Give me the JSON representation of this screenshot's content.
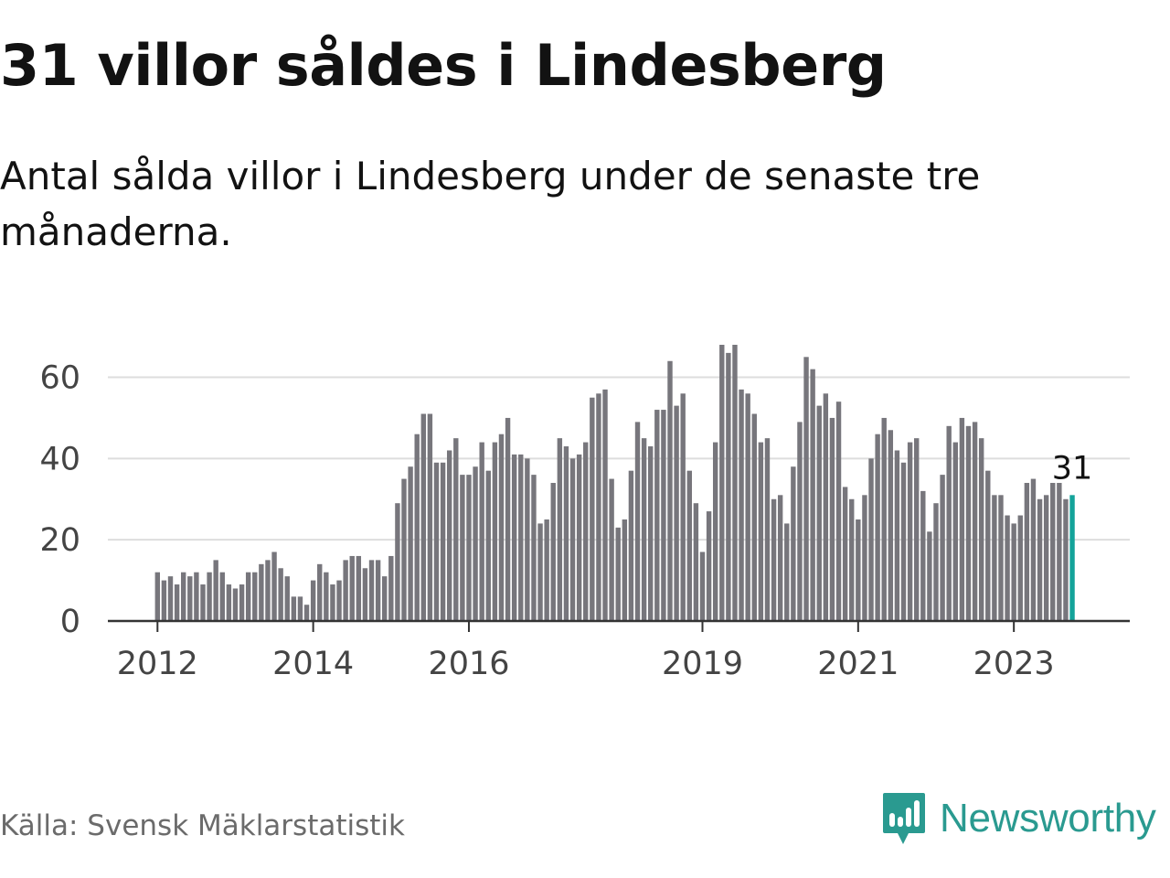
{
  "title": "31 villor såldes i Lindesberg",
  "subtitle": "Antal sålda villor i Lindesberg under de senaste tre månaderna.",
  "source": "Källa: Svensk Mäklarstatistik",
  "brand": {
    "name": "Newsworthy",
    "logo_icon": "bar-chart-speech-bubble-icon"
  },
  "colors": {
    "bar": "#77767c",
    "highlight": "#14a39a",
    "grid": "#dddddd",
    "axis": "#333333",
    "brand": "#2a9a90"
  },
  "chart_data": {
    "type": "bar",
    "title": "31 villor såldes i Lindesberg",
    "subtitle": "Antal sålda villor i Lindesberg under de senaste tre månaderna.",
    "ylim": [
      0,
      68
    ],
    "yticks": [
      0,
      20,
      40,
      60
    ],
    "grid": true,
    "x_start": "2012-01",
    "frequency": "monthly",
    "x_tick_labels": [
      "2012",
      "2014",
      "2016",
      "2019",
      "2021",
      "2023"
    ],
    "values": [
      12,
      10,
      11,
      9,
      12,
      11,
      12,
      9,
      12,
      15,
      12,
      9,
      8,
      9,
      12,
      12,
      14,
      15,
      17,
      13,
      11,
      6,
      6,
      4,
      10,
      14,
      12,
      9,
      10,
      15,
      16,
      16,
      13,
      15,
      15,
      11,
      16,
      29,
      35,
      38,
      46,
      51,
      51,
      39,
      39,
      42,
      45,
      36,
      36,
      38,
      44,
      37,
      44,
      46,
      50,
      41,
      41,
      40,
      36,
      24,
      25,
      34,
      45,
      43,
      40,
      41,
      44,
      55,
      56,
      57,
      35,
      23,
      25,
      37,
      49,
      45,
      43,
      52,
      52,
      64,
      53,
      56,
      37,
      29,
      17,
      27,
      44,
      68,
      66,
      68,
      57,
      56,
      51,
      44,
      45,
      30,
      31,
      24,
      38,
      49,
      65,
      62,
      53,
      56,
      50,
      54,
      33,
      30,
      25,
      31,
      40,
      46,
      50,
      47,
      42,
      39,
      44,
      45,
      32,
      22,
      29,
      36,
      48,
      44,
      50,
      48,
      49,
      45,
      37,
      31,
      31,
      26,
      24,
      26,
      34,
      35,
      30,
      31,
      34,
      34,
      30,
      31
    ],
    "highlight_last": true,
    "last_value_label": "31"
  }
}
